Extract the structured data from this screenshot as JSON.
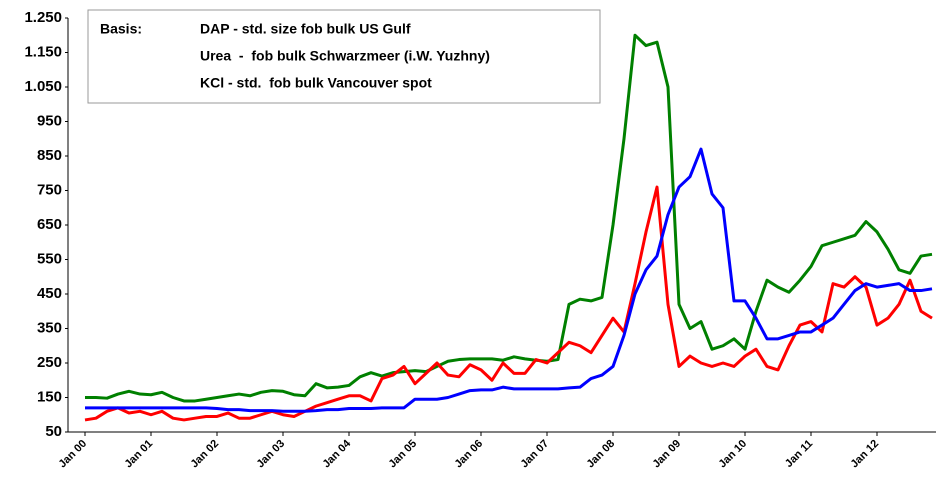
{
  "chart_data": {
    "type": "line",
    "annotation_title": "Basis:",
    "annotations": [
      "DAP - std. size fob bulk US Gulf",
      "Urea  -  fob bulk Schwarzmeer (i.W. Yuzhny)",
      "KCl - std.  fob bulk Vancouver spot"
    ],
    "categories": [
      "Jan 00",
      null,
      null,
      null,
      null,
      null,
      "Jan 01",
      null,
      null,
      null,
      null,
      null,
      "Jan 02",
      null,
      null,
      null,
      null,
      null,
      "Jan 03",
      null,
      null,
      null,
      null,
      null,
      "Jan 04",
      null,
      null,
      null,
      null,
      null,
      "Jan 05",
      null,
      null,
      null,
      null,
      null,
      "Jan 06",
      null,
      null,
      null,
      null,
      null,
      "Jan 07",
      null,
      null,
      null,
      null,
      null,
      "Jan 08",
      null,
      null,
      null,
      null,
      null,
      "Jan 09",
      null,
      null,
      null,
      null,
      null,
      "Jan 10",
      null,
      null,
      null,
      null,
      null,
      "Jan 11",
      null,
      null,
      null,
      null,
      null,
      "Jan 12",
      null,
      null,
      null,
      null,
      null
    ],
    "series": [
      {
        "color": "#008000",
        "values": [
          150,
          150,
          148,
          160,
          168,
          160,
          158,
          165,
          150,
          140,
          140,
          145,
          150,
          155,
          160,
          155,
          165,
          170,
          168,
          158,
          155,
          190,
          178,
          180,
          185,
          210,
          222,
          212,
          222,
          225,
          228,
          225,
          240,
          255,
          260,
          262,
          262,
          262,
          258,
          268,
          262,
          258,
          255,
          260,
          420,
          435,
          430,
          440,
          650,
          900,
          1200,
          1170,
          1180,
          1050,
          420,
          350,
          370,
          290,
          300,
          320,
          290,
          400,
          490,
          470,
          455,
          490,
          530,
          590,
          600,
          610,
          620,
          660,
          630,
          580,
          520,
          510,
          560,
          565
        ]
      },
      {
        "color": "#ff0000",
        "values": [
          85,
          90,
          110,
          120,
          105,
          110,
          100,
          110,
          90,
          85,
          90,
          95,
          95,
          105,
          90,
          90,
          100,
          110,
          100,
          95,
          110,
          125,
          135,
          145,
          155,
          155,
          140,
          205,
          215,
          240,
          190,
          220,
          250,
          215,
          210,
          245,
          230,
          200,
          250,
          220,
          220,
          260,
          250,
          280,
          310,
          300,
          280,
          330,
          380,
          340,
          480,
          630,
          760,
          420,
          240,
          270,
          250,
          240,
          250,
          240,
          270,
          290,
          240,
          230,
          300,
          360,
          370,
          340,
          480,
          470,
          500,
          470,
          360,
          380,
          420,
          490,
          400,
          380
        ]
      },
      {
        "color": "#0000ff",
        "values": [
          120,
          120,
          120,
          120,
          120,
          120,
          120,
          120,
          120,
          120,
          120,
          120,
          118,
          115,
          115,
          112,
          112,
          112,
          110,
          110,
          110,
          112,
          115,
          115,
          118,
          118,
          118,
          120,
          120,
          120,
          145,
          145,
          145,
          150,
          160,
          170,
          172,
          172,
          180,
          175,
          175,
          175,
          175,
          175,
          178,
          180,
          205,
          215,
          240,
          330,
          450,
          520,
          560,
          680,
          760,
          790,
          870,
          740,
          700,
          430,
          430,
          380,
          320,
          320,
          330,
          340,
          340,
          360,
          380,
          420,
          460,
          480,
          470,
          475,
          480,
          460,
          460,
          465
        ]
      }
    ],
    "ylim": [
      50,
      1250
    ],
    "yticks": [
      50,
      150,
      250,
      350,
      450,
      550,
      650,
      750,
      850,
      950,
      {
        "value": 1050,
        "label": "1.050"
      },
      {
        "value": 1150,
        "label": "1.150"
      },
      {
        "value": 1250,
        "label": "1.250"
      }
    ],
    "grid": false
  }
}
